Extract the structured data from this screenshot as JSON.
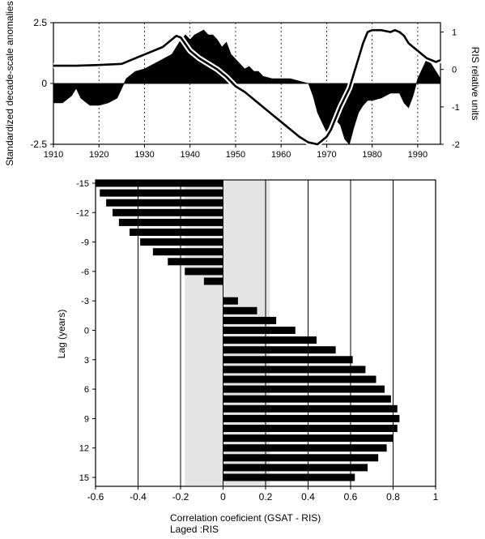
{
  "chart_data": [
    {
      "type": "area",
      "xlim": [
        1910,
        1995
      ],
      "x_ticks": [
        "1910",
        "1920",
        "1930",
        "1940",
        "1950",
        "1960",
        "1970",
        "1980",
        "1990"
      ],
      "ylabel": "Standardized decade-scale anomalies",
      "ylim": [
        -2.5,
        2.5
      ],
      "y_ticks": [
        "2.5",
        "0",
        "-2.5"
      ],
      "y2label": "RIS relative units",
      "y2lim": [
        -2,
        1.25
      ],
      "y2_ticks": [
        "1",
        "0",
        "-1",
        "-2"
      ],
      "grid": "vertical dotted",
      "series": [
        {
          "kind": "filled-area",
          "axis": "left",
          "color": "#000000",
          "x": [
            1910,
            1912,
            1914,
            1915,
            1916,
            1918,
            1920,
            1922,
            1924,
            1925,
            1926,
            1928,
            1930,
            1932,
            1934,
            1936,
            1937,
            1938,
            1939,
            1940,
            1941,
            1942,
            1943,
            1944,
            1945,
            1946,
            1947,
            1948,
            1949,
            1950,
            1951,
            1952,
            1953,
            1954,
            1955,
            1956,
            1958,
            1960,
            1962,
            1964,
            1966,
            1967,
            1968,
            1969,
            1970,
            1971,
            1972,
            1973,
            1974,
            1975,
            1976,
            1977,
            1978,
            1979,
            1980,
            1982,
            1984,
            1986,
            1987,
            1988,
            1989,
            1990,
            1991,
            1992,
            1993,
            1994,
            1995
          ],
          "y": [
            -0.8,
            -0.8,
            -0.5,
            -0.2,
            -0.6,
            -0.9,
            -0.9,
            -0.8,
            -0.6,
            -0.2,
            0.2,
            0.5,
            0.6,
            0.8,
            1.0,
            1.2,
            1.5,
            1.8,
            2.0,
            1.8,
            2.0,
            2.1,
            2.2,
            2.0,
            2.0,
            1.8,
            1.5,
            1.7,
            1.2,
            1.0,
            0.8,
            0.6,
            0.7,
            0.5,
            0.5,
            0.3,
            0.2,
            0.2,
            0.2,
            0.1,
            0.0,
            -0.5,
            -1.2,
            -1.6,
            -2.0,
            -1.8,
            -1.5,
            -1.7,
            -2.3,
            -2.5,
            -1.8,
            -1.2,
            -0.9,
            -0.7,
            -0.7,
            -0.6,
            -0.4,
            -0.4,
            -0.8,
            -1.0,
            -0.5,
            0.2,
            0.6,
            1.0,
            0.8,
            0.5,
            0.2
          ]
        },
        {
          "kind": "line",
          "axis": "right",
          "color": "#000000",
          "x": [
            1910,
            1915,
            1920,
            1925,
            1928,
            1931,
            1934,
            1936,
            1937,
            1938,
            1940,
            1942,
            1944,
            1946,
            1948,
            1950,
            1952,
            1954,
            1956,
            1958,
            1960,
            1962,
            1964,
            1966,
            1968,
            1970,
            1971,
            1972,
            1973,
            1975,
            1976,
            1977,
            1978,
            1979,
            1980,
            1982,
            1984,
            1985,
            1986,
            1987,
            1988,
            1990,
            1992,
            1994,
            1995
          ],
          "y": [
            0.1,
            0.1,
            0.12,
            0.15,
            0.3,
            0.45,
            0.6,
            0.8,
            0.9,
            0.85,
            0.5,
            0.3,
            0.15,
            0.0,
            -0.2,
            -0.45,
            -0.6,
            -0.8,
            -1.0,
            -1.2,
            -1.4,
            -1.6,
            -1.8,
            -1.95,
            -2.0,
            -1.8,
            -1.6,
            -1.3,
            -1.0,
            -0.5,
            -0.1,
            0.3,
            0.7,
            1.0,
            1.05,
            1.05,
            1.0,
            1.05,
            1.0,
            0.9,
            0.7,
            0.5,
            0.3,
            0.2,
            0.25
          ]
        }
      ]
    },
    {
      "type": "bar",
      "orientation": "horizontal",
      "xlabel": "Correlation coeficient (GSAT - RIS)",
      "xlabel2": "Laged :RIS",
      "ylabel": "Lag (years)",
      "xlim": [
        -0.6,
        1
      ],
      "x_ticks": [
        "-0.6",
        "-0.4",
        "-0.2",
        "0",
        "0.2",
        "0.4",
        "0.6",
        "0.8",
        "1"
      ],
      "y_ticks": [
        "-15",
        "-12",
        "-9",
        "-6",
        "-3",
        "0",
        "3",
        "6",
        "9",
        "12",
        "15"
      ],
      "grid": "vertical lines",
      "shaded_band": [
        -0.18,
        0.22
      ],
      "categories": [
        -15,
        -14,
        -13,
        -12,
        -11,
        -10,
        -9,
        -8,
        -7,
        -6,
        -5,
        -4,
        -3,
        -2,
        -1,
        0,
        1,
        2,
        3,
        4,
        5,
        6,
        7,
        8,
        9,
        10,
        11,
        12,
        13,
        14,
        15
      ],
      "values": [
        -0.6,
        -0.58,
        -0.55,
        -0.52,
        -0.49,
        -0.44,
        -0.39,
        -0.33,
        -0.26,
        -0.18,
        -0.09,
        0.0,
        0.07,
        0.16,
        0.25,
        0.34,
        0.44,
        0.53,
        0.61,
        0.67,
        0.72,
        0.76,
        0.79,
        0.82,
        0.83,
        0.82,
        0.8,
        0.77,
        0.73,
        0.68,
        0.62
      ]
    }
  ],
  "caption": {
    "line1": "Correlation coeficient (GSAT - RIS)",
    "line2": "Laged :RIS"
  }
}
